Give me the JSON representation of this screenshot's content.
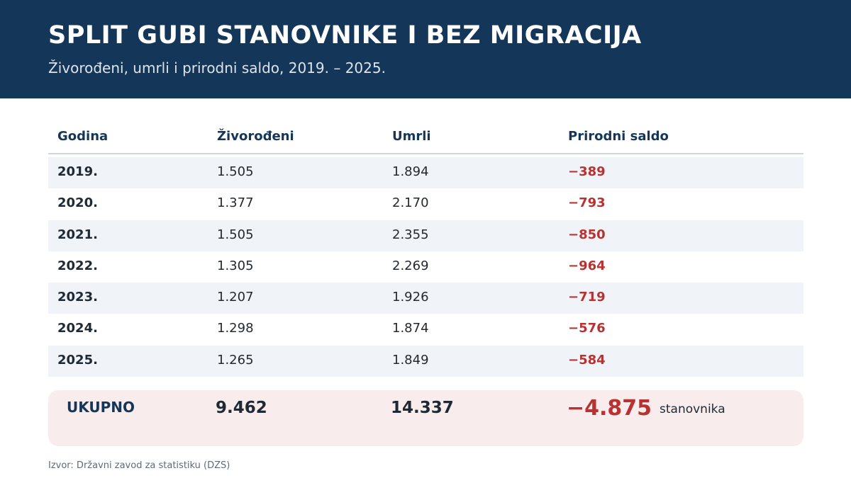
{
  "header": {
    "title": "SPLIT GUBI STANOVNIKE I BEZ MIGRACIJA",
    "subtitle": "Živorođeni, umrli i prirodni saldo, 2019. – 2025."
  },
  "table": {
    "columns": [
      "Godina",
      "Živorođeni",
      "Umrli",
      "Prirodni saldo"
    ],
    "rows": [
      {
        "year": "2019.",
        "born": "1.505",
        "died": "1.894",
        "saldo": "−389"
      },
      {
        "year": "2020.",
        "born": "1.377",
        "died": "2.170",
        "saldo": "−793"
      },
      {
        "year": "2021.",
        "born": "1.505",
        "died": "2.355",
        "saldo": "−850"
      },
      {
        "year": "2022.",
        "born": "1.305",
        "died": "2.269",
        "saldo": "−964"
      },
      {
        "year": "2023.",
        "born": "1.207",
        "died": "1.926",
        "saldo": "−719"
      },
      {
        "year": "2024.",
        "born": "1.298",
        "died": "1.874",
        "saldo": "−576"
      },
      {
        "year": "2025.",
        "born": "1.265",
        "died": "1.849",
        "saldo": "−584"
      }
    ]
  },
  "total": {
    "label": "UKUPNO",
    "born": "9.462",
    "died": "14.337",
    "saldo": "−4.875",
    "unit": "stanovnika"
  },
  "source": "Izvor: Državni zavod za statistiku (DZS)",
  "colors": {
    "header_bg": "#133659",
    "negative": "#b83232",
    "row_stripe": "#f0f4f8",
    "total_bg": "#f9ecec"
  }
}
